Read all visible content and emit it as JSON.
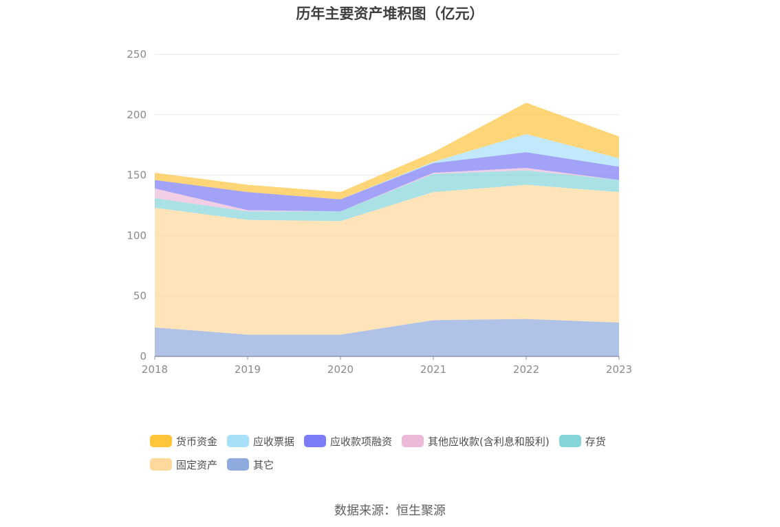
{
  "title": "历年主要资产堆积图（亿元）",
  "source": "数据来源：恒生聚源",
  "chart_data": {
    "type": "area",
    "stacked": true,
    "x": [
      "2018",
      "2019",
      "2020",
      "2021",
      "2022",
      "2023"
    ],
    "ylim": [
      0,
      250
    ],
    "yticks": [
      "0",
      "50",
      "100",
      "150",
      "200",
      "250"
    ],
    "grid": true,
    "legend_position": "bottom",
    "series": [
      {
        "name": "其它",
        "color": "#8faadc",
        "values": [
          24,
          18,
          18,
          30,
          31,
          28
        ]
      },
      {
        "name": "固定资产",
        "color": "#ffd89c",
        "values": [
          99,
          95,
          94,
          106,
          111,
          108
        ]
      },
      {
        "name": "存货",
        "color": "#85d4d8",
        "values": [
          8,
          7,
          8,
          15,
          12,
          10
        ]
      },
      {
        "name": "其他应收款(含利息和股利)",
        "color": "#ecbad8",
        "values": [
          8,
          1,
          0,
          1,
          2,
          0
        ]
      },
      {
        "name": "应收款项融资",
        "color": "#7b7cf5",
        "values": [
          7,
          15,
          10,
          8,
          13,
          11
        ]
      },
      {
        "name": "应收票据",
        "color": "#a8e0fa",
        "values": [
          0,
          0,
          0,
          1,
          15,
          7
        ]
      },
      {
        "name": "货币资金",
        "color": "#ffc53d",
        "values": [
          6,
          6,
          6,
          8,
          26,
          18
        ]
      }
    ]
  },
  "legend_order": [
    "货币资金",
    "应收票据",
    "应收款项融资",
    "其他应收款(含利息和股利)",
    "存货",
    "固定资产",
    "其它"
  ]
}
